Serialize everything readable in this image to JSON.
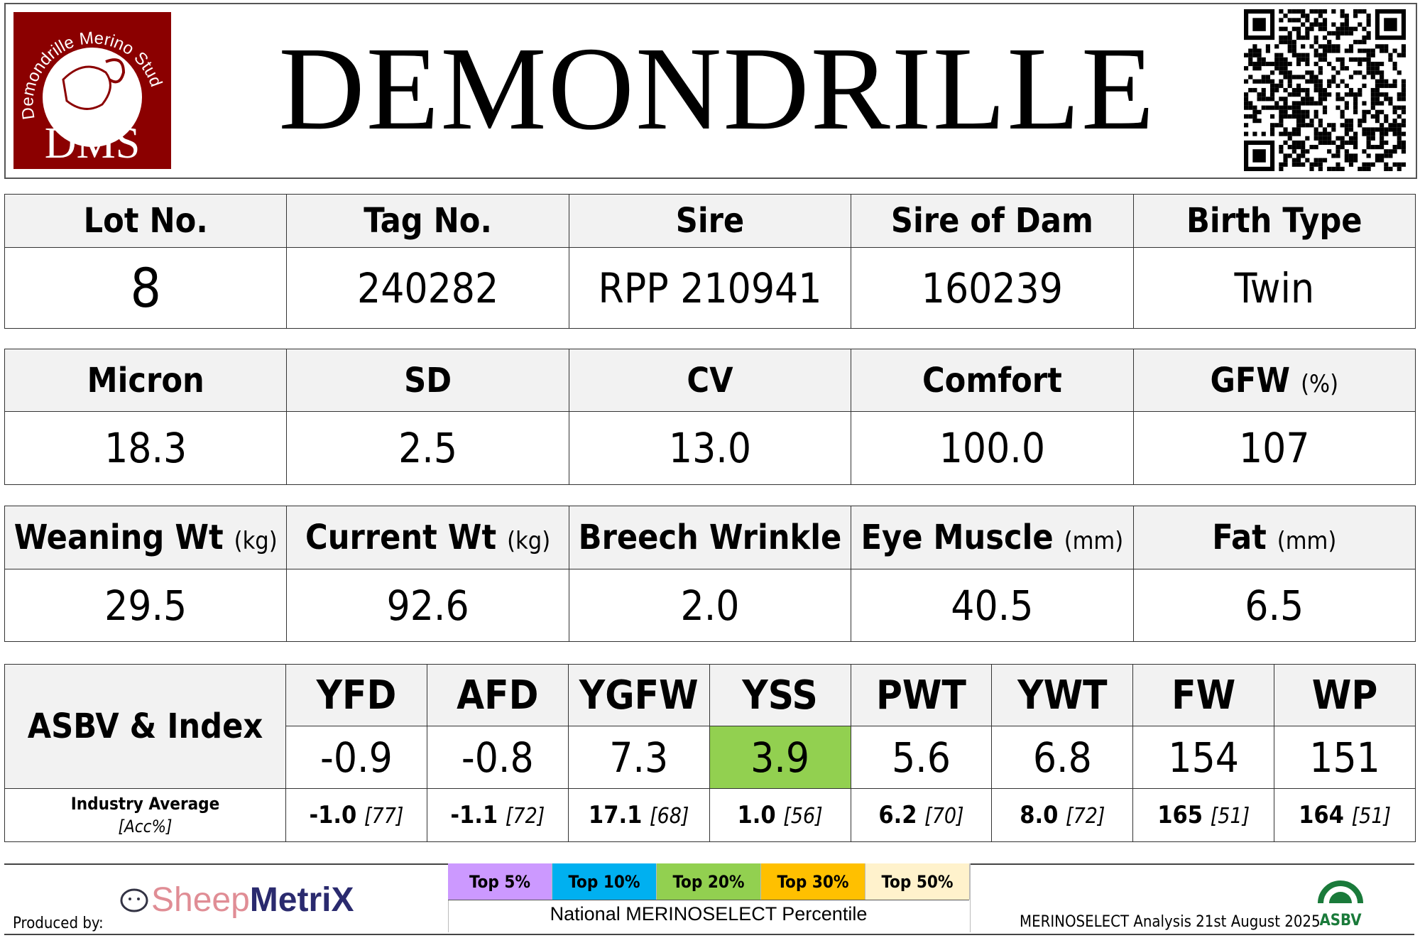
{
  "header": {
    "title": "DEMONDRILLE",
    "logo_text": "Demondrille Merino Stud",
    "logo_initials": "DMS",
    "logo_color": "#8b0000"
  },
  "table1": {
    "headers": [
      "Lot No.",
      "Tag No.",
      "Sire",
      "Sire of Dam",
      "Birth Type"
    ],
    "values": [
      "8",
      "240282",
      "RPP 210941",
      "160239",
      "Twin"
    ]
  },
  "table2": {
    "headers": [
      {
        "label": "Micron",
        "unit": ""
      },
      {
        "label": "SD",
        "unit": ""
      },
      {
        "label": "CV",
        "unit": ""
      },
      {
        "label": "Comfort",
        "unit": ""
      },
      {
        "label": "GFW",
        "unit": "(%)"
      }
    ],
    "values": [
      "18.3",
      "2.5",
      "13.0",
      "100.0",
      "107"
    ]
  },
  "table3": {
    "headers": [
      {
        "label": "Weaning Wt",
        "unit": "(kg)"
      },
      {
        "label": "Current Wt",
        "unit": "(kg)"
      },
      {
        "label": "Breech Wrinkle",
        "unit": ""
      },
      {
        "label": "Eye Muscle",
        "unit": "(mm)"
      },
      {
        "label": "Fat",
        "unit": "(mm)"
      }
    ],
    "values": [
      "29.5",
      "92.6",
      "2.0",
      "40.5",
      "6.5"
    ]
  },
  "asbv": {
    "label": "ASBV & Index",
    "avg_label": "Industry Average",
    "acc_label": "[Acc%]",
    "traits": [
      {
        "name": "YFD",
        "value": "-0.9",
        "avg": "-1.0",
        "acc": "[77]",
        "highlight": ""
      },
      {
        "name": "AFD",
        "value": "-0.8",
        "avg": "-1.1",
        "acc": "[72]",
        "highlight": ""
      },
      {
        "name": "YGFW",
        "value": "7.3",
        "avg": "17.1",
        "acc": "[68]",
        "highlight": ""
      },
      {
        "name": "YSS",
        "value": "3.9",
        "avg": "1.0",
        "acc": "[56]",
        "highlight": "#92d050"
      },
      {
        "name": "PWT",
        "value": "5.6",
        "avg": "6.2",
        "acc": "[70]",
        "highlight": ""
      },
      {
        "name": "YWT",
        "value": "6.8",
        "avg": "8.0",
        "acc": "[72]",
        "highlight": ""
      },
      {
        "name": "FW",
        "value": "154",
        "avg": "165",
        "acc": "[51]",
        "highlight": ""
      },
      {
        "name": "WP",
        "value": "151",
        "avg": "164",
        "acc": "[51]",
        "highlight": ""
      }
    ]
  },
  "footer": {
    "produced_by": "Produced by:",
    "brand_a": "Sheep",
    "brand_b": "MetriX",
    "legend": [
      {
        "label": "Top 5%",
        "color": "#cc99ff"
      },
      {
        "label": "Top 10%",
        "color": "#00b0f0"
      },
      {
        "label": "Top 20%",
        "color": "#92d050"
      },
      {
        "label": "Top 30%",
        "color": "#ffc000"
      },
      {
        "label": "Top 50%",
        "color": "#fff2cc"
      }
    ],
    "legend_caption": "National MERINOSELECT Percentile",
    "analysis": "MERINOSELECT Analysis 21st August 2025",
    "badge_top": "MERINOSELECT",
    "badge_bottom": "ASBV"
  }
}
